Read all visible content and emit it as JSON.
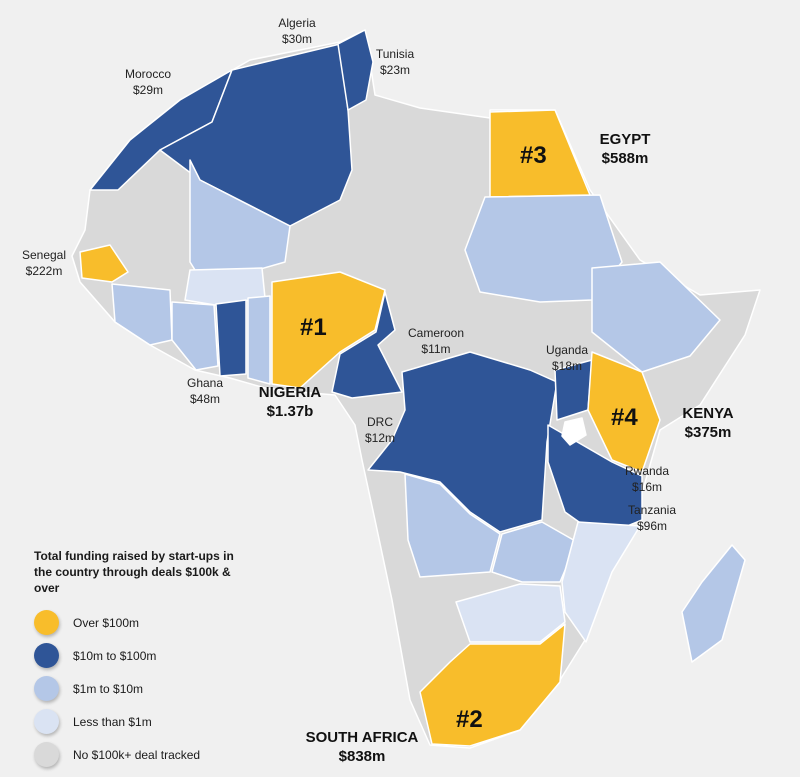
{
  "colors": {
    "over_100m": "#f8bd2b",
    "10m_to_100m": "#2f5597",
    "1m_to_10m": "#b4c7e7",
    "less_than_1m": "#dae3f3",
    "no_deal": "#d9d9d9",
    "background": "#f0f0f0"
  },
  "countries": {
    "morocco": {
      "name": "Morocco",
      "amount": "$29m",
      "tier": "10m_to_100m"
    },
    "algeria": {
      "name": "Algeria",
      "amount": "$30m",
      "tier": "10m_to_100m"
    },
    "tunisia": {
      "name": "Tunisia",
      "amount": "$23m",
      "tier": "10m_to_100m"
    },
    "egypt": {
      "name": "EGYPT",
      "amount": "$588m",
      "rank": "#3",
      "tier": "over_100m"
    },
    "senegal": {
      "name": "Senegal",
      "amount": "$222m",
      "tier": "over_100m"
    },
    "nigeria": {
      "name": "NIGERIA",
      "amount": "$1.37b",
      "rank": "#1",
      "tier": "over_100m"
    },
    "ghana": {
      "name": "Ghana",
      "amount": "$48m",
      "tier": "10m_to_100m"
    },
    "cameroon": {
      "name": "Cameroon",
      "amount": "$11m",
      "tier": "10m_to_100m"
    },
    "drc": {
      "name": "DRC",
      "amount": "$12m",
      "tier": "10m_to_100m"
    },
    "uganda": {
      "name": "Uganda",
      "amount": "$18m",
      "tier": "10m_to_100m"
    },
    "kenya": {
      "name": "KENYA",
      "amount": "$375m",
      "rank": "#4",
      "tier": "over_100m"
    },
    "rwanda": {
      "name": "Rwanda",
      "amount": "$16m",
      "tier": "10m_to_100m"
    },
    "tanzania": {
      "name": "Tanzania",
      "amount": "$96m",
      "tier": "10m_to_100m"
    },
    "south_africa": {
      "name": "SOUTH AFRICA",
      "amount": "$838m",
      "rank": "#2",
      "tier": "over_100m"
    }
  },
  "legend": {
    "title": "Total funding raised by start-ups in the country through deals $100k & over",
    "items": [
      {
        "label": "Over $100m",
        "color": "#f8bd2b"
      },
      {
        "label": "$10m to $100m",
        "color": "#2f5597"
      },
      {
        "label": "$1m to $10m",
        "color": "#b4c7e7"
      },
      {
        "label": "Less than $1m",
        "color": "#dae3f3"
      },
      {
        "label": "No $100k+ deal tracked",
        "color": "#d9d9d9"
      }
    ]
  }
}
